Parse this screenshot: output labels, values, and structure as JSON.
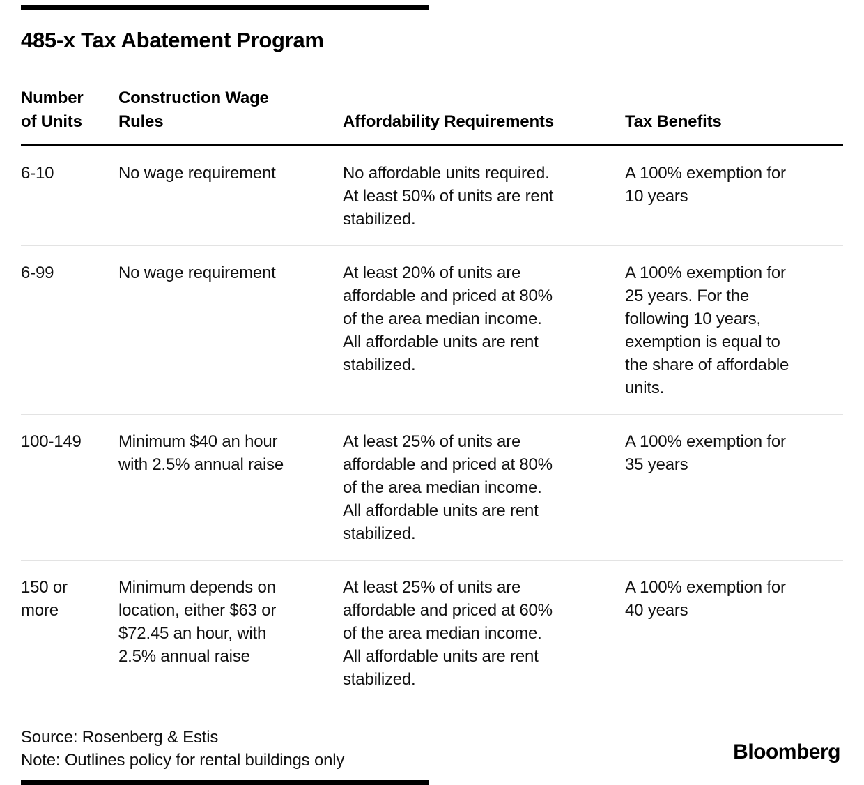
{
  "chart_data": {
    "type": "table",
    "title": "485-x Tax Abatement Program",
    "columns": [
      "Number\nof Units",
      "Construction Wage\nRules",
      "Affordability Requirements",
      "Tax Benefits"
    ],
    "rows": [
      [
        "6-10",
        "No wage requirement",
        "No affordable units required.\nAt least 50% of units are rent\nstabilized.",
        "A 100% exemption for\n10 years"
      ],
      [
        "6-99",
        "No wage requirement",
        "At least 20% of units are\naffordable and priced at 80%\nof the area median income.\nAll affordable units are rent\nstabilized.",
        "A 100% exemption for\n25 years. For the\nfollowing 10 years,\nexemption is equal to\nthe share of affordable\nunits."
      ],
      [
        "100-149",
        "Minimum $40 an hour\nwith 2.5% annual raise",
        "At least 25% of units are\naffordable and priced at 80%\nof the area median income.\nAll affordable units are rent\nstabilized.",
        "A 100% exemption for\n35 years"
      ],
      [
        "150 or\nmore",
        "Minimum depends on\nlocation, either $63 or\n$72.45 an hour, with\n2.5% annual raise",
        "At least 25% of units are\naffordable and priced at 60%\nof the area median income.\nAll affordable units are rent\nstabilized.",
        "A 100% exemption for\n40 years"
      ]
    ],
    "source": "Source: Rosenberg & Estis",
    "note": "Note: Outlines policy for rental buildings only",
    "brand": "Bloomberg",
    "layout_hints": {
      "legend_position": "none",
      "grid": "horizontal-row-dividers"
    },
    "colors": {
      "background": "#ffffff",
      "text": "#111111",
      "header_rule": "#000000",
      "row_divider": "#e3e3e3",
      "accent_bar": "#000000"
    }
  }
}
